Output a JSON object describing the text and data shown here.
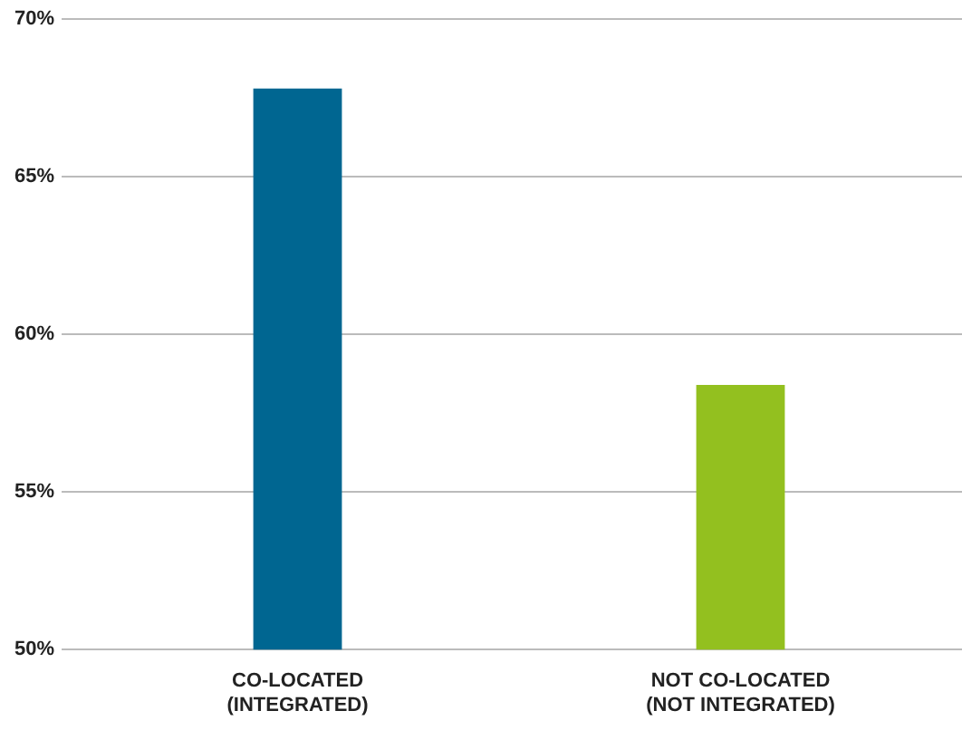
{
  "chart_data": {
    "type": "bar",
    "categories": [
      "CO-LOCATED\n(INTEGRATED)",
      "NOT CO-LOCATED\n(NOT INTEGRATED)"
    ],
    "values": [
      67.8,
      58.4
    ],
    "colors": [
      "#006691",
      "#93c01f"
    ],
    "ylim": [
      50,
      70
    ],
    "yticks": [
      {
        "value": 50,
        "label": "50%"
      },
      {
        "value": 55,
        "label": "55%"
      },
      {
        "value": 60,
        "label": "60%"
      },
      {
        "value": 65,
        "label": "65%"
      },
      {
        "value": 70,
        "label": "70%"
      }
    ],
    "grid": "y",
    "legend": false
  }
}
